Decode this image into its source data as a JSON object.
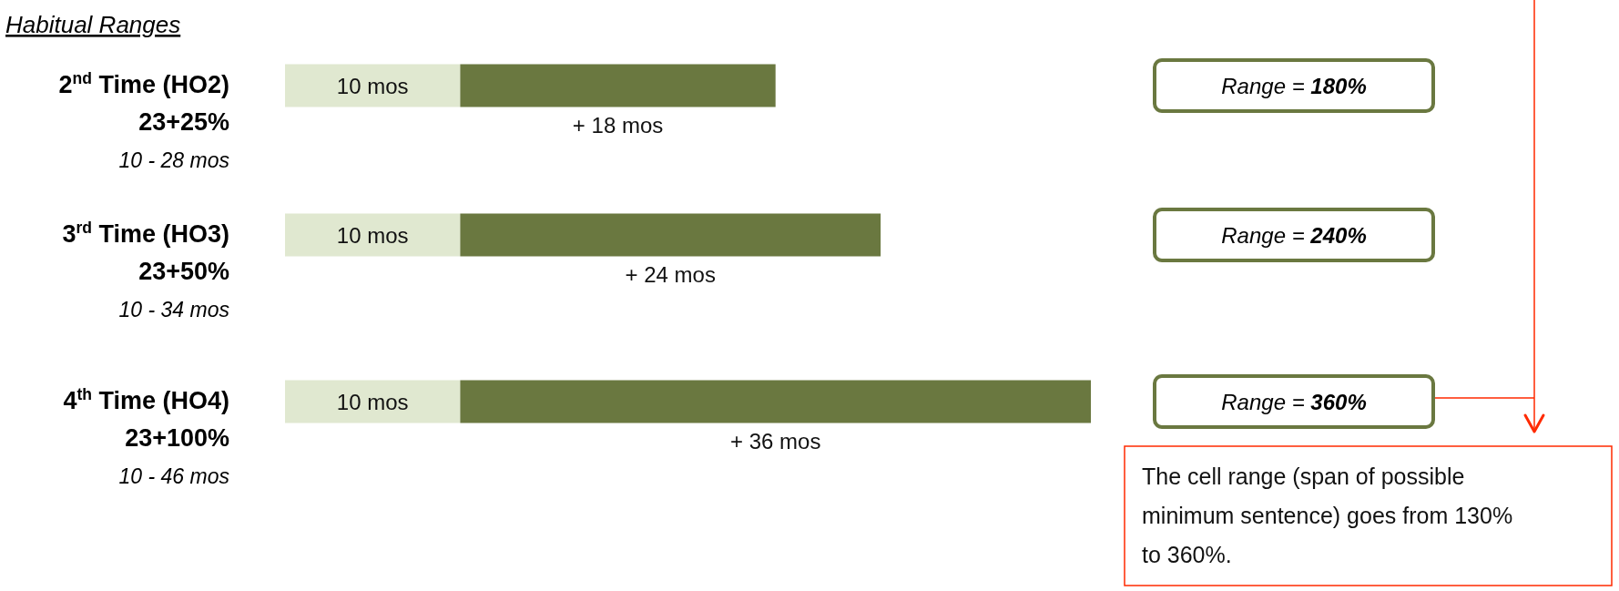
{
  "chart_data": {
    "type": "bar",
    "title": "Habitual Ranges",
    "orientation": "horizontal",
    "stacked": true,
    "categories": [
      "2$^{nd}$ Time (HO2)\n23+25%\n10 - 28 mos",
      "3$^{rd}$ Time (HO3)\n23+50%\n10 - 34 mos",
      "4$^{th}$ Time (HO4)\n23+100%\n10 - 46 mos"
    ],
    "series": [
      {
        "color": "#e0e8d0",
        "values": [
          10,
          10,
          10
        ],
        "value_labels": [
          "10 mos",
          "10 mos",
          "10 mos"
        ]
      },
      {
        "color": "#6a7840",
        "values": [
          18,
          24,
          36
        ],
        "value_labels": [
          "+ 18 mos",
          "+ 24 mos",
          "+ 36 mos"
        ]
      }
    ],
    "annotations": [
      "Range = 180%",
      "Range = 240%",
      "Range = 360%",
      "The cell range (span of possible minimum sentence) goes from 130% to 360%."
    ]
  }
}
